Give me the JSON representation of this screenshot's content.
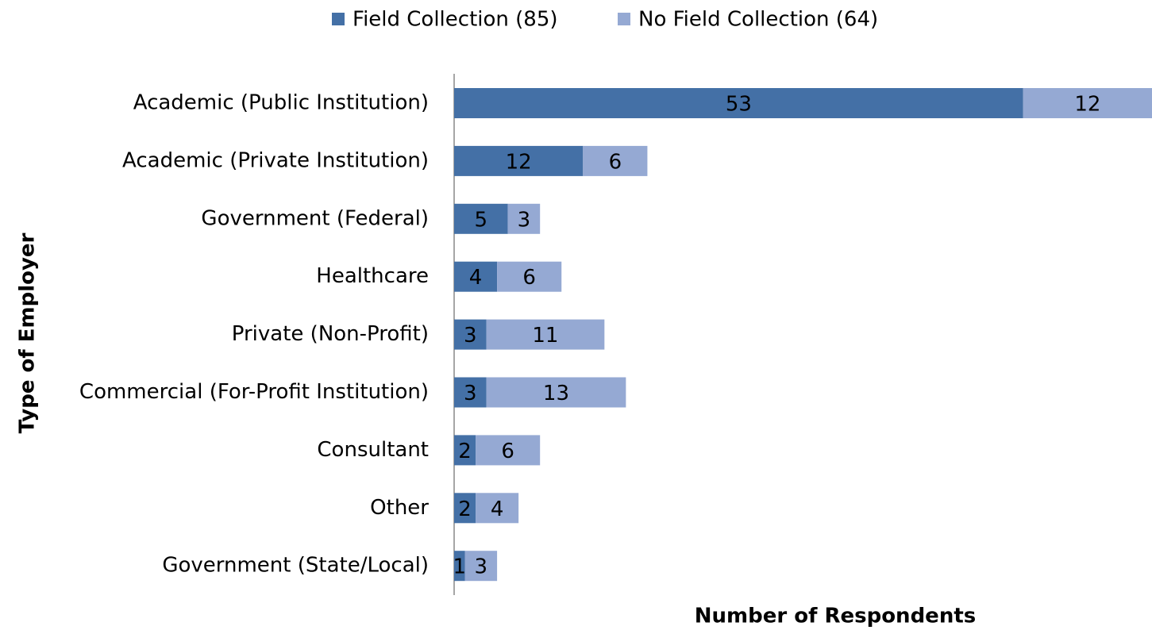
{
  "chart_data": {
    "type": "stacked-bar-horizontal",
    "y_axis_label": "Type of Employer",
    "x_axis_label": "Number of Respondents",
    "categories": [
      "Academic (Public Institution)",
      "Academic (Private Institution)",
      "Government (Federal)",
      "Healthcare",
      "Private (Non-Profit)",
      "Commercial (For-Profit Institution)",
      "Consultant",
      "Other",
      "Government (State/Local)"
    ],
    "series": [
      {
        "name": "Field Collection (85)",
        "color": "#4470a6",
        "values": [
          53,
          12,
          5,
          4,
          3,
          3,
          2,
          2,
          1
        ]
      },
      {
        "name": "No Field Collection (64)",
        "color": "#95a9d3",
        "values": [
          12,
          6,
          3,
          6,
          11,
          13,
          6,
          4,
          3
        ]
      }
    ],
    "xlim": [
      0,
      65
    ],
    "legend": "top"
  }
}
